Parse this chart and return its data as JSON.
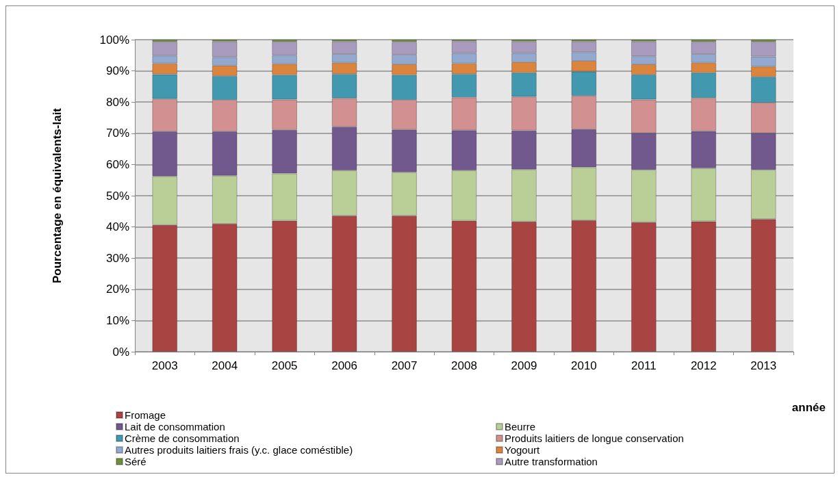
{
  "chart_data": {
    "type": "bar",
    "stacked": true,
    "ylabel": "Pourcentage en équivalents-lait",
    "xlabel": "année",
    "categories": [
      "2003",
      "2004",
      "2005",
      "2006",
      "2007",
      "2008",
      "2009",
      "2010",
      "2011",
      "2012",
      "2013"
    ],
    "ylim": [
      0,
      100
    ],
    "yticks": [
      {
        "value": 0,
        "label": "0%"
      },
      {
        "value": 10,
        "label": "10%"
      },
      {
        "value": 20,
        "label": "20%"
      },
      {
        "value": 30,
        "label": "30%"
      },
      {
        "value": 40,
        "label": "40%"
      },
      {
        "value": 50,
        "label": "50%"
      },
      {
        "value": 60,
        "label": "60%"
      },
      {
        "value": 70,
        "label": "70%"
      },
      {
        "value": 80,
        "label": "80%"
      },
      {
        "value": 90,
        "label": "90%"
      },
      {
        "value": 100,
        "label": "100%"
      }
    ],
    "grid": "y",
    "legend": "bottom",
    "series": [
      {
        "name": "Fromage",
        "color": "#a84442",
        "values": [
          40.6,
          41.0,
          42.0,
          43.6,
          43.6,
          42.0,
          41.7,
          42.1,
          41.5,
          41.8,
          42.5
        ]
      },
      {
        "name": "Beurre",
        "color": "#b9cf97",
        "values": [
          15.6,
          15.4,
          15.1,
          14.5,
          13.9,
          16.1,
          16.7,
          17.0,
          16.8,
          17.0,
          15.8
        ]
      },
      {
        "name": "Lait de consommation",
        "color": "#71598e",
        "values": [
          14.4,
          14.2,
          14.0,
          14.0,
          13.7,
          12.9,
          12.5,
          12.2,
          11.8,
          11.9,
          11.8
        ]
      },
      {
        "name": "Produits laitiers de longue conservation",
        "color": "#d29090",
        "values": [
          10.4,
          10.1,
          9.7,
          9.1,
          9.5,
          10.5,
          10.8,
          10.7,
          10.7,
          10.6,
          9.7
        ]
      },
      {
        "name": "Crème de consommation",
        "color": "#4298ae",
        "values": [
          7.9,
          7.7,
          7.9,
          7.8,
          8.0,
          7.5,
          7.7,
          7.8,
          8.0,
          8.1,
          8.3
        ]
      },
      {
        "name": "Yogourt",
        "color": "#db843d",
        "values": [
          3.5,
          3.3,
          3.5,
          3.6,
          3.4,
          3.4,
          3.4,
          3.4,
          3.3,
          3.2,
          3.3
        ]
      },
      {
        "name": "Autres produits laitiers frais (y.c. glace coméstible)",
        "color": "#93a9cf",
        "values": [
          2.5,
          2.7,
          2.9,
          2.8,
          3.1,
          3.3,
          2.9,
          2.8,
          2.6,
          2.8,
          3.2
        ]
      },
      {
        "name": "Autre transformation",
        "color": "#a99bbd",
        "values": [
          4.4,
          5.0,
          4.2,
          4.0,
          4.1,
          3.8,
          3.7,
          3.4,
          4.7,
          3.9,
          4.7
        ]
      },
      {
        "name": "Séré",
        "color": "#6f8f3a",
        "values": [
          0.7,
          0.6,
          0.7,
          0.6,
          0.7,
          0.5,
          0.6,
          0.6,
          0.6,
          0.7,
          0.7
        ]
      }
    ]
  }
}
